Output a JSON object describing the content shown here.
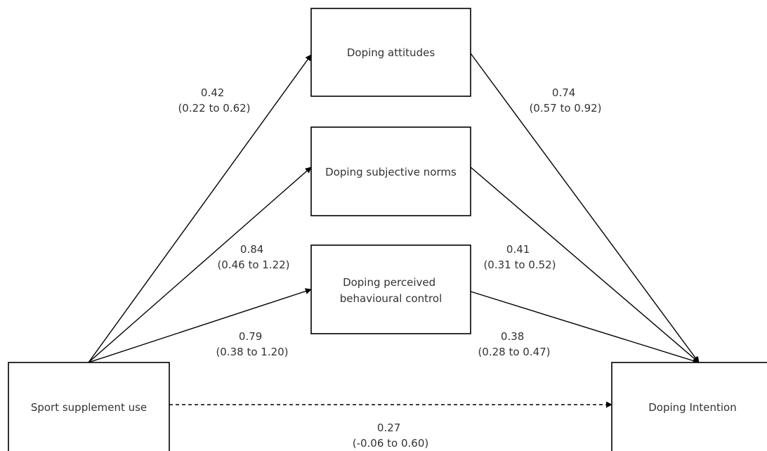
{
  "nodes": {
    "attitudes": {
      "lines": [
        "Doping attitudes"
      ]
    },
    "norms": {
      "lines": [
        "Doping subjective norms"
      ]
    },
    "pbc": {
      "lines": [
        "Doping perceived",
        "behavioural control"
      ]
    },
    "supplement": {
      "lines": [
        "Sport supplement use"
      ]
    },
    "intention": {
      "lines": [
        "Doping Intention"
      ]
    }
  },
  "edges": {
    "supp_att": {
      "coef": "0.42",
      "ci": "(0.22 to 0.62)",
      "style": "solid"
    },
    "supp_norms": {
      "coef": "0.84",
      "ci": "(0.46 to 1.22)",
      "style": "solid"
    },
    "supp_pbc": {
      "coef": "0.79",
      "ci": "(0.38 to 1.20)",
      "style": "solid"
    },
    "att_int": {
      "coef": "0.74",
      "ci": "(0.57 to 0.92)",
      "style": "solid"
    },
    "norms_int": {
      "coef": "0.41",
      "ci": "(0.31 to 0.52)",
      "style": "solid"
    },
    "pbc_int": {
      "coef": "0.38",
      "ci": "(0.28 to 0.47)",
      "style": "solid"
    },
    "supp_int": {
      "coef": "0.27",
      "ci": "(-0.06 to 0.60)",
      "style": "dashed"
    }
  },
  "colors": {
    "stroke": "#000000",
    "text": "#333333",
    "background": "#ffffff"
  }
}
